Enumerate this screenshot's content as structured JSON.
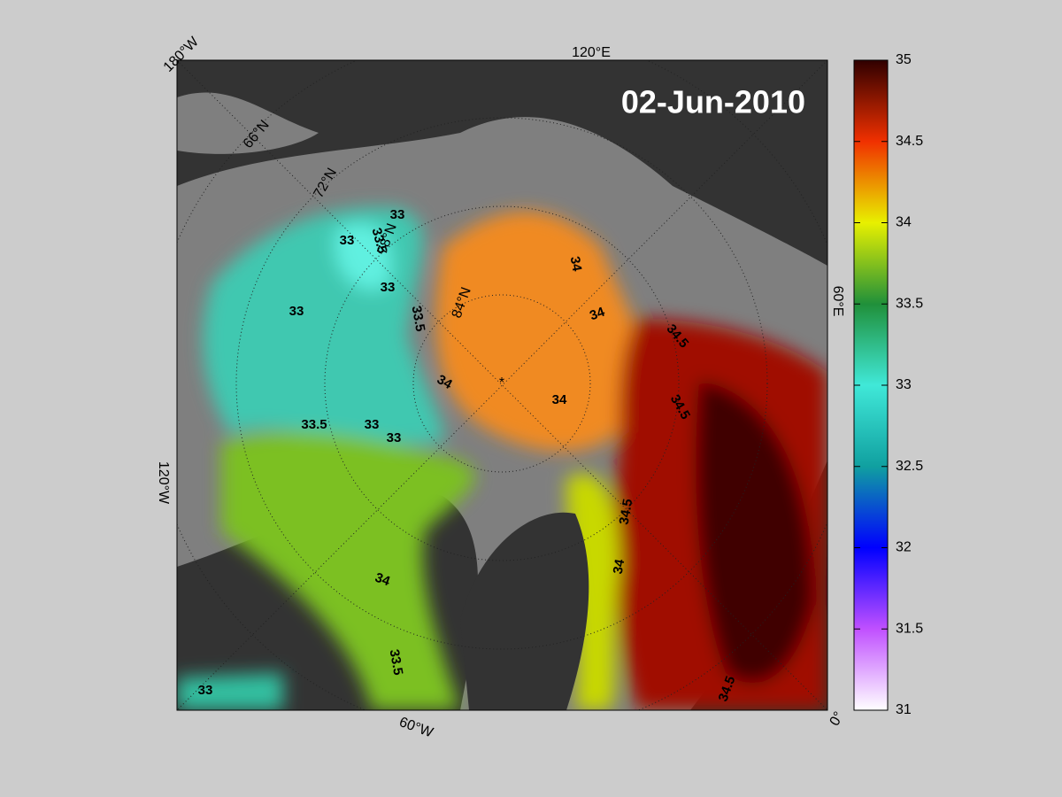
{
  "map": {
    "date": "02-Jun-2010",
    "graticule_labels": [
      "180°W",
      "120°E",
      "66°N",
      "72°N",
      "78°N",
      "84°N",
      "60°E",
      "120°W",
      "60°W",
      "0°"
    ],
    "contour_labels": [
      "33",
      "33",
      "33.5",
      "33",
      "33",
      "33.5",
      "34",
      "33",
      "33",
      "33.5",
      "34",
      "34",
      "34.5",
      "34",
      "34.5",
      "34.5",
      "34",
      "34",
      "33.5",
      "33",
      "34.5"
    ],
    "colorbar": {
      "lim": [
        31,
        35
      ],
      "ticks": [
        31,
        31.5,
        32,
        32.5,
        33,
        33.5,
        34,
        34.5,
        35
      ],
      "colors": [
        "#ffffff",
        "#c050ff",
        "#0000ff",
        "#10a0a0",
        "#40e8d8",
        "#20903a",
        "#e8f000",
        "#f03000",
        "#300000"
      ]
    }
  }
}
